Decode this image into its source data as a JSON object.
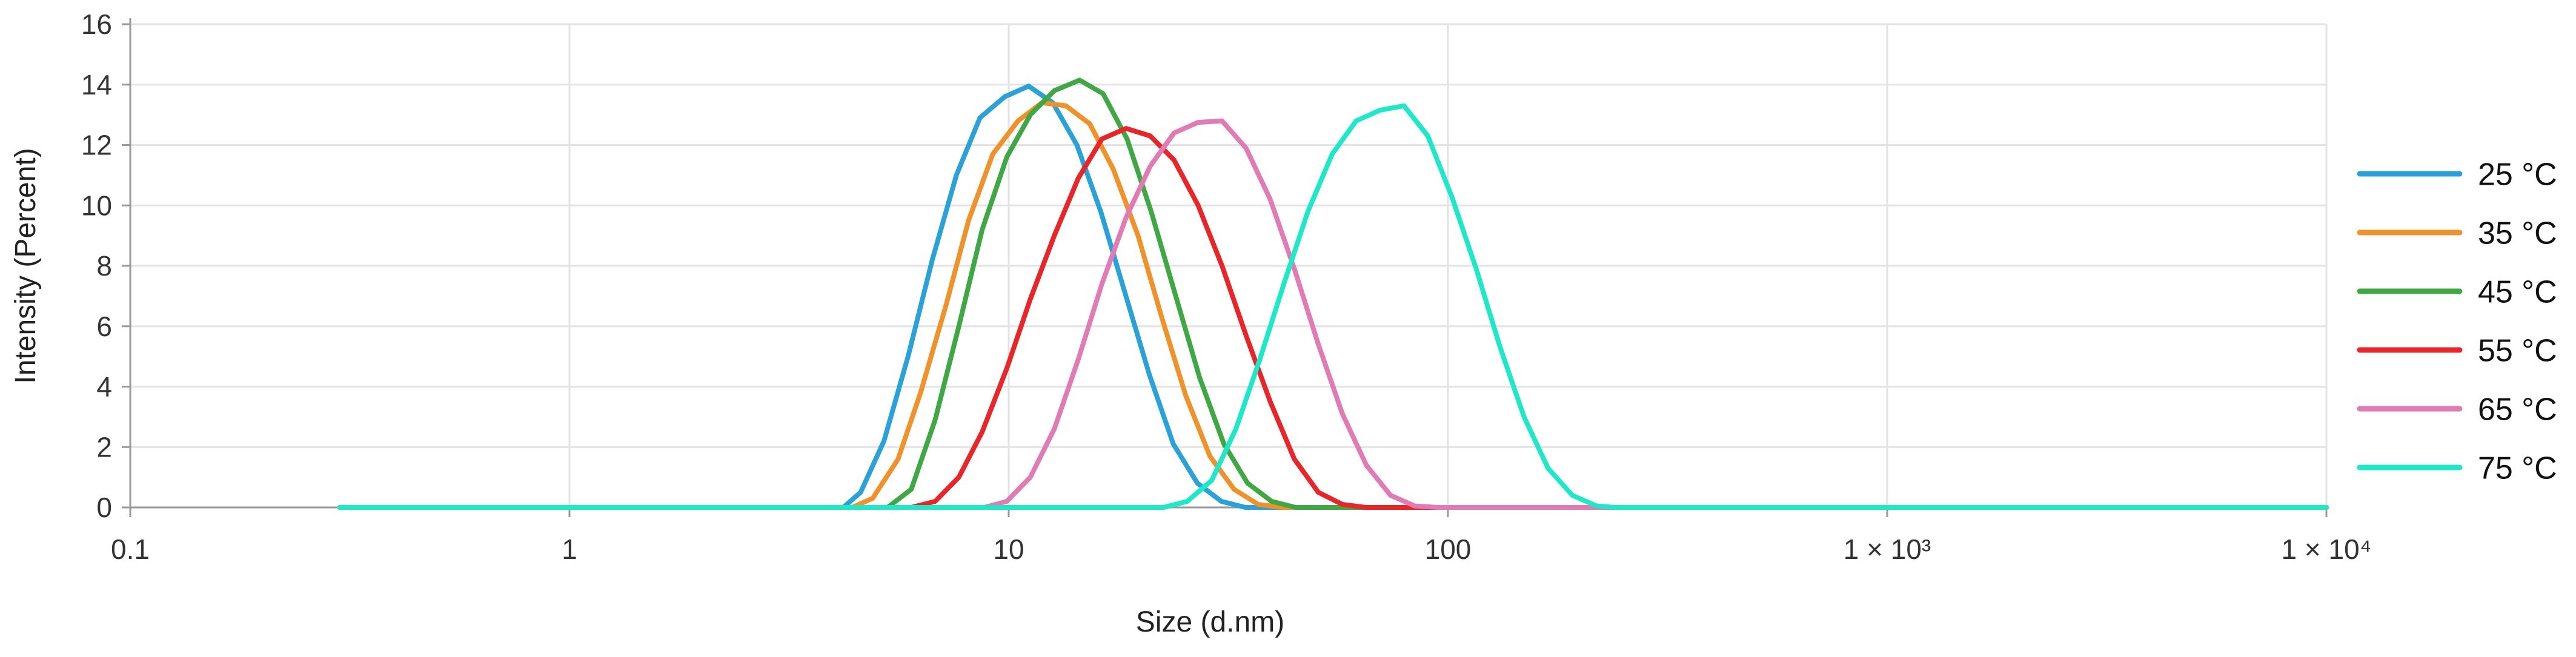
{
  "chart_data": {
    "type": "line",
    "title": "",
    "xlabel": "Size (d.nm)",
    "ylabel": "Intensity (Percent)",
    "x_scale": "log",
    "xlim": [
      0.1,
      10000
    ],
    "ylim": [
      0,
      16
    ],
    "y_ticks": [
      0,
      2,
      4,
      6,
      8,
      10,
      12,
      14,
      16
    ],
    "x_ticks": [
      {
        "value": 0.1,
        "label": "0.1"
      },
      {
        "value": 1,
        "label": "1"
      },
      {
        "value": 10,
        "label": "10"
      },
      {
        "value": 100,
        "label": "100"
      },
      {
        "value": 1000,
        "label": "1 × 10³"
      },
      {
        "value": 10000,
        "label": "1 × 10⁴"
      }
    ],
    "grid": true,
    "legend_position": "right",
    "series": [
      {
        "name": "25 °C",
        "color": "#2aa2d8",
        "points": [
          [
            0.3,
            0
          ],
          [
            1,
            0
          ],
          [
            3,
            0
          ],
          [
            4.2,
            0
          ],
          [
            4.6,
            0.5
          ],
          [
            5.2,
            2.2
          ],
          [
            5.9,
            5
          ],
          [
            6.7,
            8.2
          ],
          [
            7.6,
            11
          ],
          [
            8.6,
            12.9
          ],
          [
            9.8,
            13.6
          ],
          [
            11.1,
            13.95
          ],
          [
            12.6,
            13.4
          ],
          [
            14.3,
            12
          ],
          [
            16.2,
            9.8
          ],
          [
            18.4,
            7.1
          ],
          [
            20.9,
            4.4
          ],
          [
            23.7,
            2.1
          ],
          [
            26.9,
            0.8
          ],
          [
            30.5,
            0.2
          ],
          [
            34.6,
            0
          ],
          [
            50,
            0
          ],
          [
            10000,
            0
          ]
        ]
      },
      {
        "name": "35 °C",
        "color": "#f0922b",
        "points": [
          [
            0.3,
            0
          ],
          [
            1,
            0
          ],
          [
            4.4,
            0
          ],
          [
            4.9,
            0.3
          ],
          [
            5.6,
            1.6
          ],
          [
            6.3,
            3.8
          ],
          [
            7.2,
            6.7
          ],
          [
            8.1,
            9.5
          ],
          [
            9.2,
            11.7
          ],
          [
            10.5,
            12.8
          ],
          [
            11.9,
            13.4
          ],
          [
            13.5,
            13.3
          ],
          [
            15.3,
            12.7
          ],
          [
            17.3,
            11.2
          ],
          [
            19.7,
            9
          ],
          [
            22.3,
            6.3
          ],
          [
            25.3,
            3.7
          ],
          [
            28.7,
            1.7
          ],
          [
            32.6,
            0.6
          ],
          [
            37,
            0.1
          ],
          [
            42,
            0
          ],
          [
            10000,
            0
          ]
        ]
      },
      {
        "name": "45 °C",
        "color": "#3fa844",
        "points": [
          [
            0.3,
            0
          ],
          [
            1,
            0
          ],
          [
            5.3,
            0
          ],
          [
            6,
            0.6
          ],
          [
            6.8,
            2.9
          ],
          [
            7.7,
            6
          ],
          [
            8.7,
            9.2
          ],
          [
            9.9,
            11.6
          ],
          [
            11.2,
            13
          ],
          [
            12.7,
            13.8
          ],
          [
            14.5,
            14.15
          ],
          [
            16.4,
            13.7
          ],
          [
            18.6,
            12.2
          ],
          [
            21.1,
            9.8
          ],
          [
            24,
            7
          ],
          [
            27.2,
            4.3
          ],
          [
            30.9,
            2.1
          ],
          [
            35,
            0.8
          ],
          [
            39.7,
            0.2
          ],
          [
            45,
            0
          ],
          [
            10000,
            0
          ]
        ]
      },
      {
        "name": "55 °C",
        "color": "#e8262a",
        "points": [
          [
            0.3,
            0
          ],
          [
            1,
            0
          ],
          [
            6,
            0
          ],
          [
            6.8,
            0.2
          ],
          [
            7.7,
            1
          ],
          [
            8.7,
            2.5
          ],
          [
            9.9,
            4.6
          ],
          [
            11.2,
            6.9
          ],
          [
            12.7,
            9
          ],
          [
            14.4,
            10.9
          ],
          [
            16.3,
            12.2
          ],
          [
            18.5,
            12.55
          ],
          [
            21,
            12.3
          ],
          [
            23.8,
            11.5
          ],
          [
            27,
            10
          ],
          [
            30.6,
            8
          ],
          [
            34.7,
            5.7
          ],
          [
            39.4,
            3.5
          ],
          [
            44.7,
            1.6
          ],
          [
            50.7,
            0.5
          ],
          [
            57.5,
            0.1
          ],
          [
            65,
            0
          ],
          [
            10000,
            0
          ]
        ]
      },
      {
        "name": "65 °C",
        "color": "#e07bb5",
        "points": [
          [
            0.3,
            0
          ],
          [
            1,
            0
          ],
          [
            8.8,
            0
          ],
          [
            9.9,
            0.2
          ],
          [
            11.2,
            1
          ],
          [
            12.7,
            2.6
          ],
          [
            14.4,
            4.9
          ],
          [
            16.3,
            7.4
          ],
          [
            18.5,
            9.6
          ],
          [
            21,
            11.3
          ],
          [
            23.8,
            12.4
          ],
          [
            27,
            12.75
          ],
          [
            30.6,
            12.8
          ],
          [
            34.7,
            11.9
          ],
          [
            39.4,
            10.2
          ],
          [
            44.7,
            7.9
          ],
          [
            50.7,
            5.4
          ],
          [
            57.5,
            3.1
          ],
          [
            65.2,
            1.4
          ],
          [
            74,
            0.4
          ],
          [
            84,
            0.05
          ],
          [
            95,
            0
          ],
          [
            10000,
            0
          ]
        ]
      },
      {
        "name": "75 °C",
        "color": "#1ee8c8",
        "points": [
          [
            0.3,
            0
          ],
          [
            1,
            0
          ],
          [
            22.5,
            0
          ],
          [
            25.5,
            0.2
          ],
          [
            29,
            0.9
          ],
          [
            32.9,
            2.6
          ],
          [
            37.3,
            4.9
          ],
          [
            42.3,
            7.4
          ],
          [
            48,
            9.8
          ],
          [
            54.5,
            11.7
          ],
          [
            61.8,
            12.8
          ],
          [
            70,
            13.15
          ],
          [
            79.4,
            13.3
          ],
          [
            90,
            12.3
          ],
          [
            102,
            10.3
          ],
          [
            116,
            7.9
          ],
          [
            131.5,
            5.3
          ],
          [
            149,
            3
          ],
          [
            169,
            1.3
          ],
          [
            192,
            0.4
          ],
          [
            218,
            0.05
          ],
          [
            240,
            0
          ],
          [
            10000,
            0
          ]
        ]
      }
    ]
  }
}
